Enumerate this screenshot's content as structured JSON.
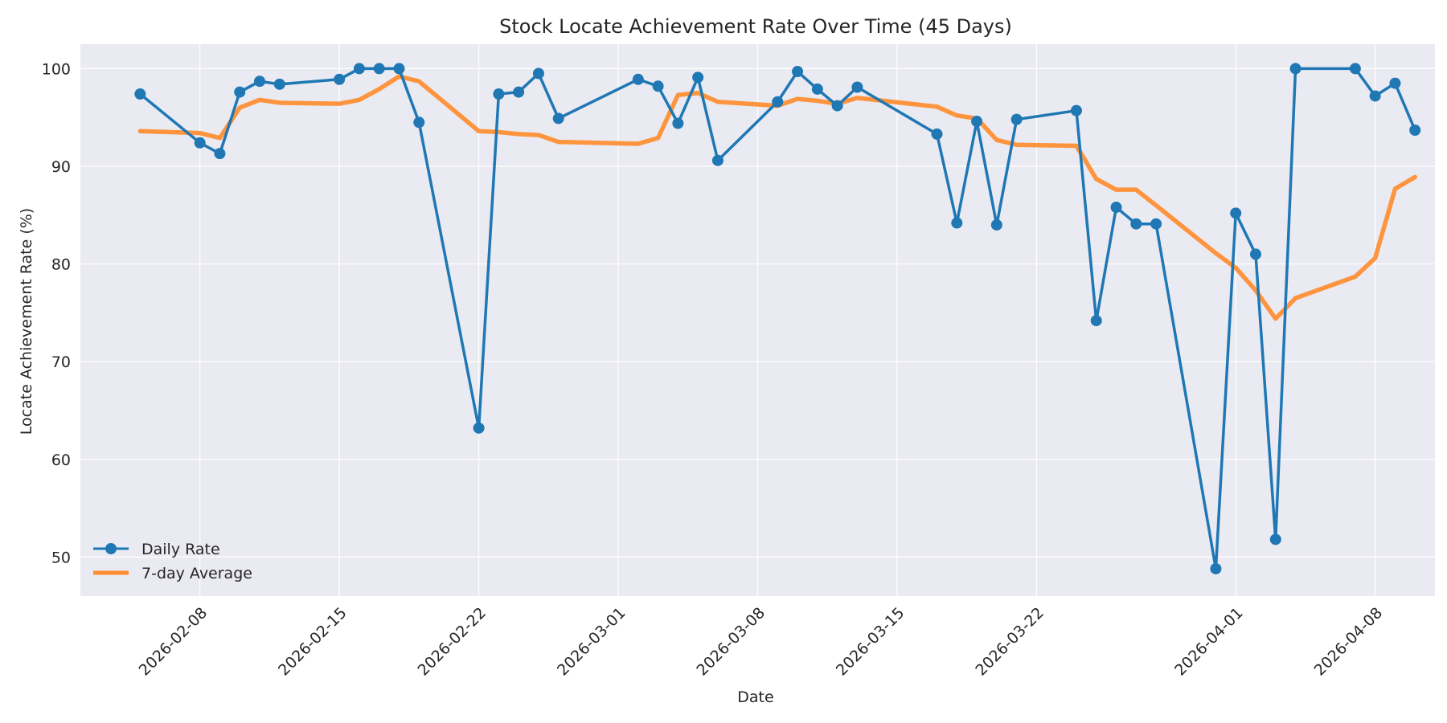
{
  "chart_data": {
    "type": "line",
    "title": "Stock Locate Achievement Rate Over Time (45 Days)",
    "xlabel": "Date",
    "ylabel": "Locate Achievement Rate (%)",
    "x_ticks": [
      "2026-02-08",
      "2026-02-15",
      "2026-02-22",
      "2026-03-01",
      "2026-03-08",
      "2026-03-15",
      "2026-03-22",
      "2026-04-01",
      "2026-04-08"
    ],
    "y_ticks": [
      50,
      60,
      70,
      80,
      90,
      100
    ],
    "ylim": [
      46,
      102.5
    ],
    "xlim": [
      "2026-02-02",
      "2026-04-11"
    ],
    "grid": true,
    "legend_position": "lower-left",
    "colors": {
      "daily": "#1f77b4",
      "average": "#ff8c2e",
      "background": "#eaeaf2",
      "grid": "#ffffff"
    },
    "series": [
      {
        "name": "Daily Rate",
        "style": "line-with-markers",
        "points": [
          [
            "2026-02-05",
            97.4
          ],
          [
            "2026-02-08",
            92.4
          ],
          [
            "2026-02-09",
            91.3
          ],
          [
            "2026-02-10",
            97.6
          ],
          [
            "2026-02-11",
            98.7
          ],
          [
            "2026-02-12",
            98.4
          ],
          [
            "2026-02-15",
            98.9
          ],
          [
            "2026-02-16",
            100.0
          ],
          [
            "2026-02-17",
            100.0
          ],
          [
            "2026-02-18",
            100.0
          ],
          [
            "2026-02-19",
            94.5
          ],
          [
            "2026-02-22",
            63.2
          ],
          [
            "2026-02-23",
            97.4
          ],
          [
            "2026-02-24",
            97.6
          ],
          [
            "2026-02-25",
            99.5
          ],
          [
            "2026-02-26",
            94.9
          ],
          [
            "2026-03-02",
            98.9
          ],
          [
            "2026-03-03",
            98.2
          ],
          [
            "2026-03-04",
            94.4
          ],
          [
            "2026-03-05",
            99.1
          ],
          [
            "2026-03-06",
            90.6
          ],
          [
            "2026-03-09",
            96.6
          ],
          [
            "2026-03-10",
            99.7
          ],
          [
            "2026-03-11",
            97.9
          ],
          [
            "2026-03-12",
            96.2
          ],
          [
            "2026-03-13",
            98.1
          ],
          [
            "2026-03-17",
            93.3
          ],
          [
            "2026-03-18",
            84.2
          ],
          [
            "2026-03-19",
            94.6
          ],
          [
            "2026-03-20",
            84.0
          ],
          [
            "2026-03-21",
            94.8
          ],
          [
            "2026-03-24",
            95.7
          ],
          [
            "2026-03-25",
            74.2
          ],
          [
            "2026-03-26",
            85.8
          ],
          [
            "2026-03-27",
            84.1
          ],
          [
            "2026-03-28",
            84.1
          ],
          [
            "2026-03-31",
            48.8
          ],
          [
            "2026-04-01",
            85.2
          ],
          [
            "2026-04-02",
            81.0
          ],
          [
            "2026-04-03",
            51.8
          ],
          [
            "2026-04-04",
            100.0
          ],
          [
            "2026-04-07",
            100.0
          ],
          [
            "2026-04-08",
            97.2
          ],
          [
            "2026-04-09",
            98.5
          ],
          [
            "2026-04-10",
            93.7
          ]
        ]
      },
      {
        "name": "7-day Average",
        "style": "line",
        "points": [
          [
            "2026-02-05",
            93.6
          ],
          [
            "2026-02-08",
            93.4
          ],
          [
            "2026-02-09",
            92.9
          ],
          [
            "2026-02-10",
            96.0
          ],
          [
            "2026-02-11",
            96.8
          ],
          [
            "2026-02-12",
            96.5
          ],
          [
            "2026-02-15",
            96.4
          ],
          [
            "2026-02-16",
            96.8
          ],
          [
            "2026-02-17",
            97.9
          ],
          [
            "2026-02-18",
            99.2
          ],
          [
            "2026-02-19",
            98.7
          ],
          [
            "2026-02-22",
            93.6
          ],
          [
            "2026-02-23",
            93.5
          ],
          [
            "2026-02-24",
            93.3
          ],
          [
            "2026-02-25",
            93.2
          ],
          [
            "2026-02-26",
            92.5
          ],
          [
            "2026-03-02",
            92.3
          ],
          [
            "2026-03-03",
            92.9
          ],
          [
            "2026-03-04",
            97.3
          ],
          [
            "2026-03-05",
            97.5
          ],
          [
            "2026-03-06",
            96.6
          ],
          [
            "2026-03-09",
            96.2
          ],
          [
            "2026-03-10",
            96.9
          ],
          [
            "2026-03-11",
            96.7
          ],
          [
            "2026-03-12",
            96.4
          ],
          [
            "2026-03-13",
            97.0
          ],
          [
            "2026-03-17",
            96.1
          ],
          [
            "2026-03-18",
            95.2
          ],
          [
            "2026-03-19",
            94.9
          ],
          [
            "2026-03-20",
            92.7
          ],
          [
            "2026-03-21",
            92.2
          ],
          [
            "2026-03-24",
            92.1
          ],
          [
            "2026-03-25",
            88.7
          ],
          [
            "2026-03-26",
            87.6
          ],
          [
            "2026-03-27",
            87.6
          ],
          [
            "2026-03-28",
            86.0
          ],
          [
            "2026-03-31",
            81.1
          ],
          [
            "2026-04-01",
            79.6
          ],
          [
            "2026-04-02",
            77.3
          ],
          [
            "2026-04-03",
            74.4
          ],
          [
            "2026-04-04",
            76.5
          ],
          [
            "2026-04-07",
            78.7
          ],
          [
            "2026-04-08",
            80.6
          ],
          [
            "2026-04-09",
            87.7
          ],
          [
            "2026-04-10",
            88.9
          ]
        ]
      }
    ]
  }
}
